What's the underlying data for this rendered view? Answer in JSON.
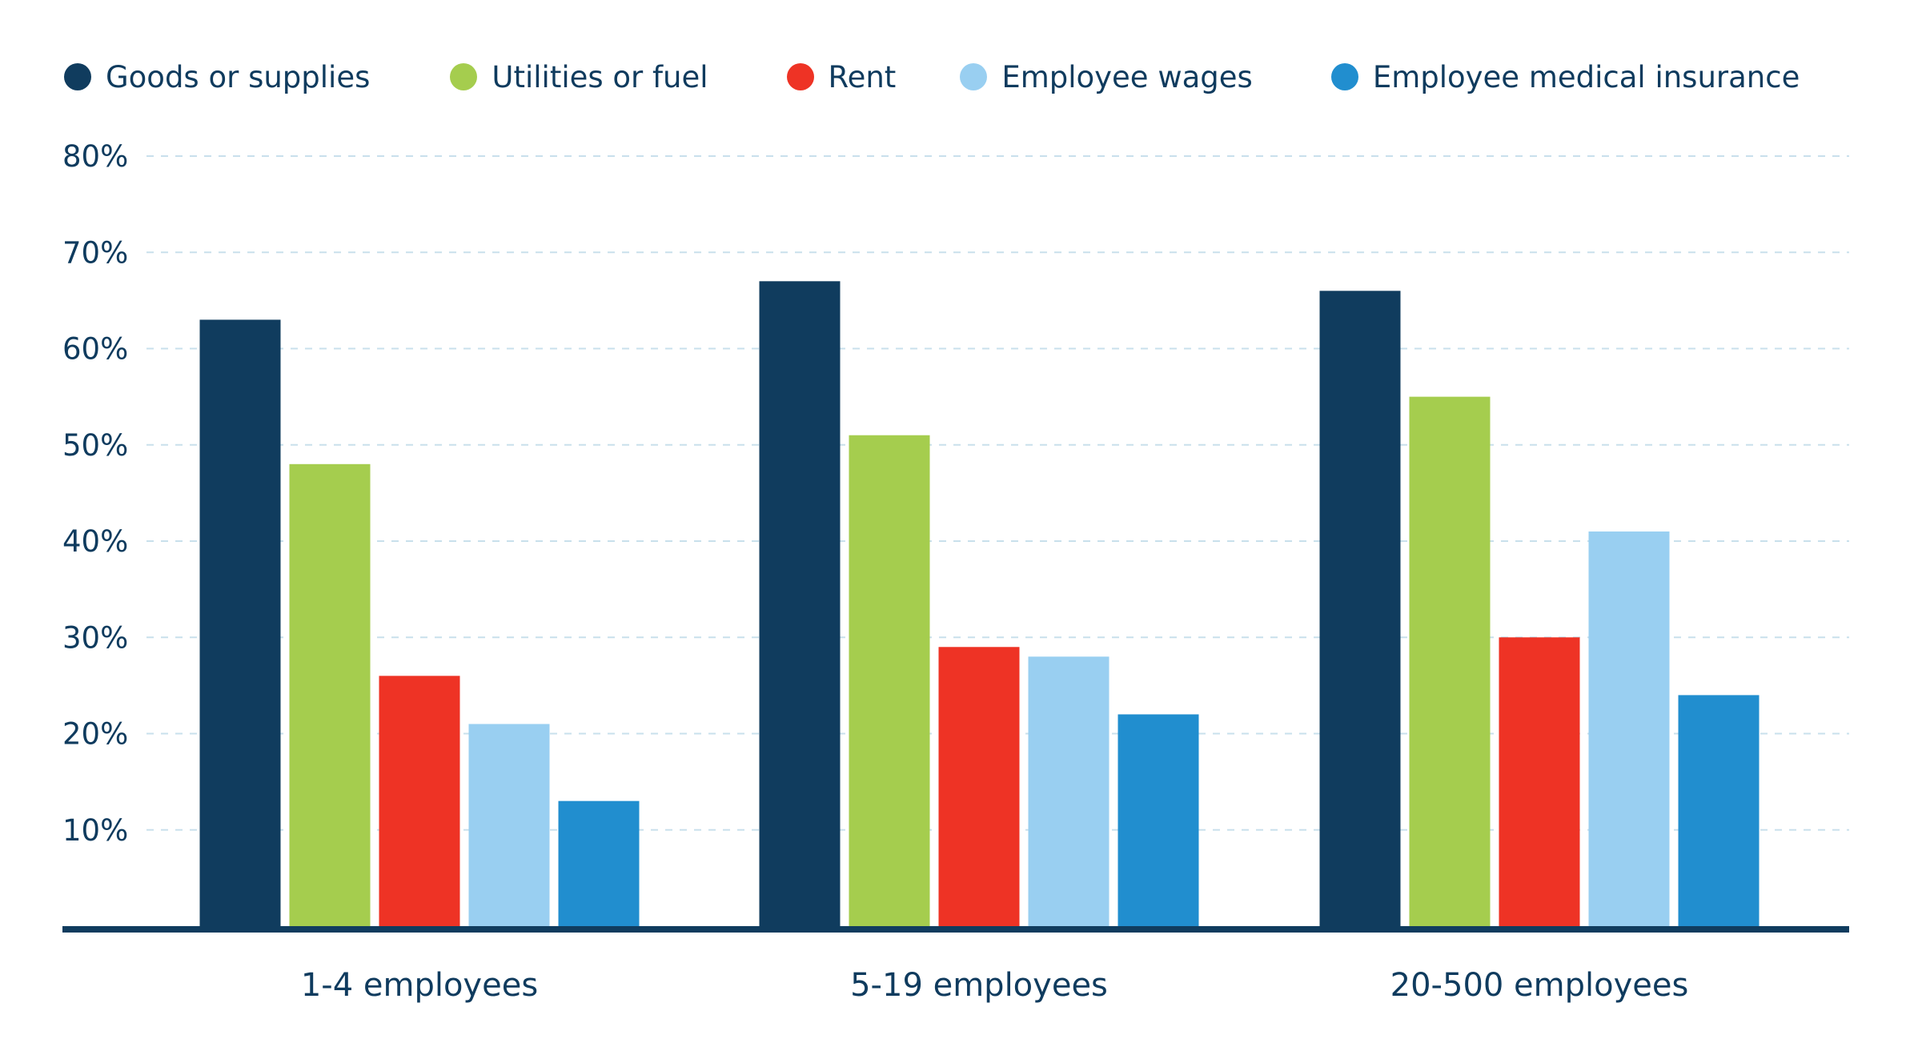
{
  "chart_data": {
    "type": "bar",
    "title": "",
    "xlabel": "",
    "ylabel": "",
    "categories": [
      "1-4 employees",
      "5-19 employees",
      "20-500 employees"
    ],
    "series": [
      {
        "name": "Goods or supplies",
        "color": "#103c5e",
        "values": [
          63,
          67,
          66
        ]
      },
      {
        "name": "Utilities or fuel",
        "color": "#a5cd4e",
        "values": [
          48,
          51,
          55
        ]
      },
      {
        "name": "Rent",
        "color": "#ee3325",
        "values": [
          26,
          29,
          30
        ]
      },
      {
        "name": "Employee wages",
        "color": "#99cff1",
        "values": [
          21,
          28,
          41
        ]
      },
      {
        "name": "Employee medical insurance",
        "color": "#218ecf",
        "values": [
          13,
          22,
          24
        ]
      }
    ],
    "ylim": [
      0,
      80
    ],
    "yticks": [
      10,
      20,
      30,
      40,
      50,
      60,
      70,
      80
    ],
    "ytick_labels": [
      "10%",
      "20%",
      "30%",
      "40%",
      "50%",
      "60%",
      "70%",
      "80%"
    ],
    "y_unit": "%",
    "grid": true,
    "grid_style": "dashed",
    "legend_position": "top",
    "axis_color": "#103c5e",
    "grid_color": "#c9e0ec"
  }
}
